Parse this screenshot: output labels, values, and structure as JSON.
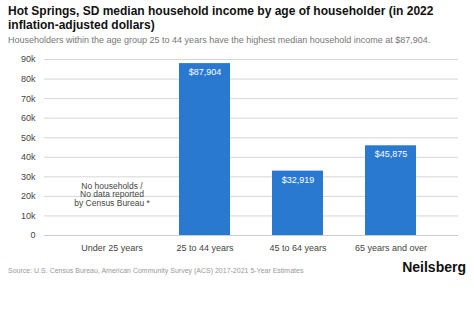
{
  "chart_data": {
    "type": "bar",
    "title": "Hot Springs, SD median household income by age of householder (in 2022 inflation-adjusted dollars)",
    "subtitle": "Householders within the age group 25 to 44 years have the highest median household income at $87,904.",
    "categories": [
      "Under 25 years",
      "25 to 44 years",
      "45 to 64 years",
      "65 years and over"
    ],
    "values": [
      null,
      87904,
      32919,
      45875
    ],
    "value_labels": [
      null,
      "$87,904",
      "$32,919",
      "$45,875"
    ],
    "data_labels": true,
    "color": "#2979d0",
    "annotation": {
      "text": "No households /\nNo data reported\nby Census Bureau *",
      "category": "Under 25 years"
    },
    "ylim": [
      0,
      90000
    ],
    "yticks": [
      0,
      {
        "value": 10000,
        "label": "10k"
      },
      {
        "value": 20000,
        "label": "20k"
      },
      {
        "value": 30000,
        "label": "30k"
      },
      {
        "value": 40000,
        "label": "40k"
      },
      {
        "value": 50000,
        "label": "50k"
      },
      {
        "value": 60000,
        "label": "60k"
      },
      {
        "value": 70000,
        "label": "70k"
      },
      {
        "value": 80000,
        "label": "80k"
      },
      {
        "value": 90000,
        "label": "90k"
      }
    ],
    "grid": true,
    "source": "Source: U.S. Census Bureau, American Community Survey (ACS) 2017-2021 5-Year Estimates",
    "brand": "Neilsberg"
  }
}
